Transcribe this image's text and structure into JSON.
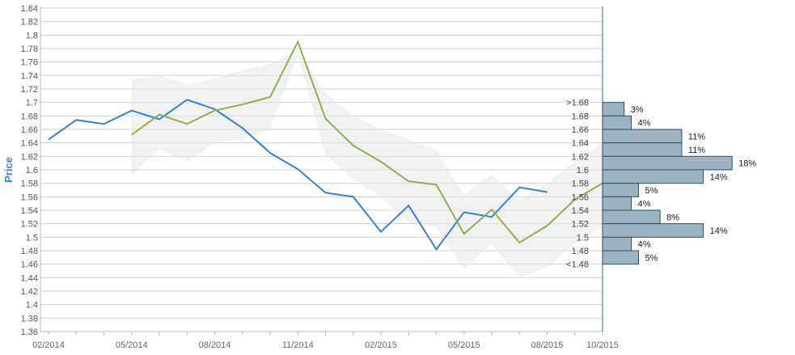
{
  "chart_data": {
    "type": "line",
    "ylabel": "Price",
    "xlabel": "",
    "title": "",
    "ylim": [
      1.36,
      1.84
    ],
    "yticks": [
      "1.36",
      "1.38",
      "1.4",
      "1.42",
      "1.44",
      "1.46",
      "1.48",
      "1.5",
      "1.52",
      "1.54",
      "1.56",
      "1.58",
      "1.6",
      "1.62",
      "1.64",
      "1.66",
      "1.68",
      "1.7",
      "1.72",
      "1.74",
      "1.76",
      "1.78",
      "1.8",
      "1.82",
      "1.84"
    ],
    "xtick_labels": [
      "02/2014",
      "05/2014",
      "08/2014",
      "11/2014",
      "02/2015",
      "05/2015",
      "08/2015",
      "10/2015"
    ],
    "x_months": [
      "02/2014",
      "03/2014",
      "04/2014",
      "05/2014",
      "06/2014",
      "07/2014",
      "08/2014",
      "09/2014",
      "10/2014",
      "11/2014",
      "12/2014",
      "01/2015",
      "02/2015",
      "03/2015",
      "04/2015",
      "05/2015",
      "06/2015",
      "07/2015",
      "08/2015",
      "09/2015",
      "10/2015"
    ],
    "series": [
      {
        "values": [
          1.645,
          1.674,
          1.668,
          1.688,
          1.675,
          1.704,
          1.69,
          1.662,
          1.625,
          1.601,
          1.566,
          1.56,
          1.508,
          1.547,
          1.482,
          1.537,
          1.53,
          1.574,
          1.567,
          null,
          null
        ],
        "color": "#3a7fcf"
      },
      {
        "values": [
          null,
          null,
          null,
          1.652,
          1.682,
          1.668,
          1.688,
          1.697,
          1.708,
          1.79,
          1.676,
          1.636,
          1.612,
          1.583,
          1.578,
          1.505,
          1.541,
          1.492,
          1.517,
          1.556,
          1.58
        ],
        "color": "#8fb050"
      }
    ],
    "band": {
      "color": "#e6e6e6",
      "upper": [
        null,
        null,
        null,
        1.734,
        1.74,
        1.727,
        1.736,
        1.748,
        1.757,
        1.778,
        1.715,
        1.68,
        1.66,
        1.645,
        1.63,
        1.562,
        1.593,
        1.555,
        1.58,
        1.612,
        1.64
      ],
      "lower": [
        null,
        null,
        null,
        1.592,
        1.63,
        1.612,
        1.64,
        1.645,
        1.66,
        1.77,
        1.622,
        1.585,
        1.56,
        1.522,
        1.515,
        1.452,
        1.49,
        1.44,
        1.456,
        1.49,
        1.515
      ]
    },
    "distribution": {
      "color": "#9db3c1",
      "labels": [
        ">1.68",
        "1.68",
        "1.66",
        "1.64",
        "1.62",
        "1.6",
        "1.58",
        "1.56",
        "1.54",
        "1.52",
        "1.5",
        "1.48",
        "<1.48"
      ],
      "bars": [
        {
          "percent": 3,
          "label": "3%"
        },
        {
          "percent": 4,
          "label": "4%"
        },
        {
          "percent": 11,
          "label": "11%"
        },
        {
          "percent": 11,
          "label": "11%"
        },
        {
          "percent": 18,
          "label": "18%"
        },
        {
          "percent": 14,
          "label": "14%"
        },
        {
          "percent": 5,
          "label": "5%"
        },
        {
          "percent": 4,
          "label": "4%"
        },
        {
          "percent": 8,
          "label": "8%"
        },
        {
          "percent": 14,
          "label": "14%"
        },
        {
          "percent": 4,
          "label": "4%"
        },
        {
          "percent": 5,
          "label": "5%"
        }
      ]
    },
    "grid": true
  }
}
